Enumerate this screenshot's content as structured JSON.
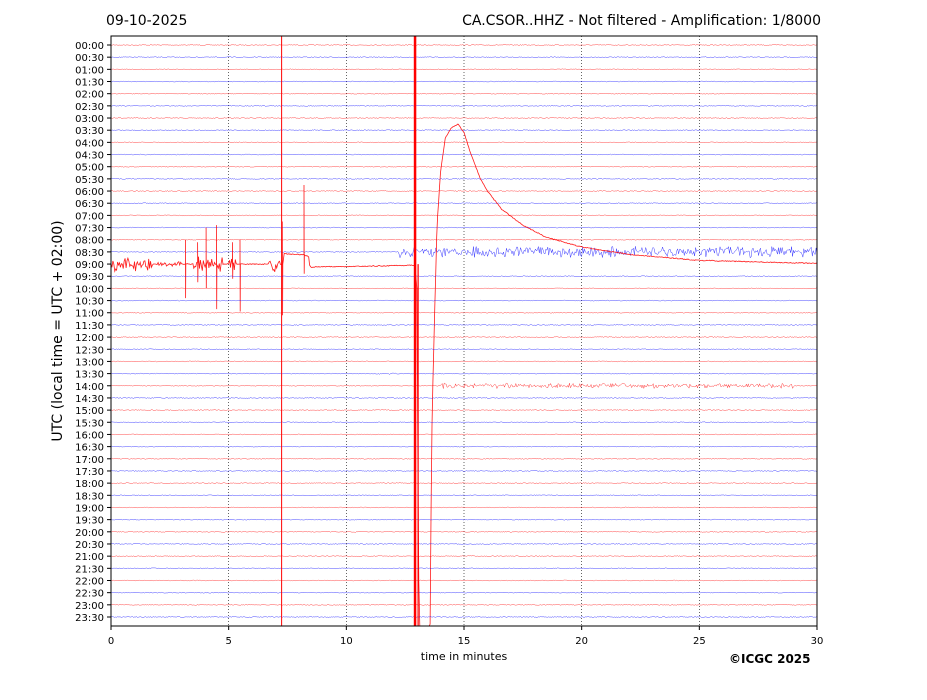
{
  "header": {
    "date": "09-10-2025",
    "title": "CA.CSOR..HHZ - Not filtered - Amplification: 1/8000"
  },
  "footer": {
    "copyright": "©ICGC 2025"
  },
  "chart_data": {
    "type": "line",
    "title": "CA.CSOR..HHZ - Not filtered - Amplification: 1/8000",
    "xlabel": "time in minutes",
    "ylabel": "UTC (local time = UTC + 02:00)",
    "xlim": [
      0,
      30
    ],
    "xticks": [
      "0",
      "5",
      "10",
      "15",
      "20",
      "25",
      "30"
    ],
    "rows": [
      "00:00",
      "00:30",
      "01:00",
      "01:30",
      "02:00",
      "02:30",
      "03:00",
      "03:30",
      "04:00",
      "04:30",
      "05:00",
      "05:30",
      "06:00",
      "06:30",
      "07:00",
      "07:30",
      "08:00",
      "08:30",
      "09:00",
      "09:30",
      "10:00",
      "10:30",
      "11:00",
      "11:30",
      "12:00",
      "12:30",
      "13:00",
      "13:30",
      "14:00",
      "14:30",
      "15:00",
      "15:30",
      "16:00",
      "16:30",
      "17:00",
      "17:30",
      "18:00",
      "18:30",
      "19:00",
      "19:30",
      "20:00",
      "20:30",
      "21:00",
      "21:30",
      "22:00",
      "22:30",
      "23:00",
      "23:30"
    ],
    "trace_colors": [
      "#ff0000",
      "#0000ff"
    ],
    "grid": "vertical dotted at x ticks",
    "bursts": [
      {
        "row": "09:00",
        "start": 0.0,
        "end": 1.8,
        "amp": 0.45
      },
      {
        "row": "09:00",
        "start": 2.0,
        "end": 3.0,
        "amp": 0.15
      },
      {
        "row": "09:00",
        "start": 3.5,
        "end": 4.8,
        "amp": 0.5
      },
      {
        "row": "09:00",
        "start": 5.0,
        "end": 5.3,
        "amp": 0.4
      },
      {
        "row": "09:00",
        "start": 6.7,
        "end": 7.2,
        "amp": 0.5
      },
      {
        "row": "08:30",
        "start": 12.2,
        "end": 30.0,
        "amp": 0.35
      },
      {
        "row": "14:00",
        "start": 14.0,
        "end": 29.0,
        "amp": 0.15
      },
      {
        "row": "13:30",
        "start": 11.3,
        "end": 12.2,
        "amp": 0.05
      }
    ],
    "spikes": [
      {
        "row": "09:00",
        "t": 3.15,
        "up": 2.0,
        "down": 2.8
      },
      {
        "row": "09:00",
        "t": 3.7,
        "up": 1.8,
        "down": 1.5
      },
      {
        "row": "09:00",
        "t": 4.05,
        "up": 3.0,
        "down": 2.0
      },
      {
        "row": "09:00",
        "t": 4.5,
        "up": 3.2,
        "down": 3.7
      },
      {
        "row": "09:00",
        "t": 5.15,
        "up": 1.8,
        "down": 1.2
      },
      {
        "row": "09:00",
        "t": 5.5,
        "up": 2.0,
        "down": 3.9
      },
      {
        "row": "09:00",
        "t": 7.3,
        "up": 3.5,
        "down": 4.2
      },
      {
        "row": "09:00",
        "t": 8.2,
        "up": 6.5,
        "down": 0.8
      }
    ],
    "step_offset": [
      [
        7.3,
        0.0
      ],
      [
        7.35,
        0.85
      ],
      [
        8.2,
        0.78
      ],
      [
        8.4,
        0.6
      ],
      [
        8.45,
        -0.25
      ],
      [
        10,
        -0.2
      ],
      [
        12.9,
        -0.1
      ]
    ],
    "full_height_lines": [
      {
        "t": 7.25,
        "weight": 1
      },
      {
        "t": 12.92,
        "weight": 2.5
      }
    ],
    "long_period_wave": {
      "row": "09:00",
      "points": [
        [
          12.9,
          0
        ],
        [
          13.0,
          -2
        ],
        [
          13.05,
          -20
        ],
        [
          13.1,
          -30
        ],
        [
          13.55,
          -32
        ],
        [
          13.62,
          -15
        ],
        [
          13.7,
          -8
        ],
        [
          13.78,
          -2
        ],
        [
          13.85,
          3
        ],
        [
          14.0,
          7.5
        ],
        [
          14.2,
          10.3
        ],
        [
          14.45,
          11.2
        ],
        [
          14.75,
          11.5
        ],
        [
          15.0,
          10.8
        ],
        [
          15.3,
          9
        ],
        [
          15.7,
          7
        ],
        [
          16.0,
          6
        ],
        [
          16.6,
          4.5
        ],
        [
          17.5,
          3.2
        ],
        [
          18.5,
          2.2
        ],
        [
          20,
          1.4
        ],
        [
          22,
          0.8
        ],
        [
          25,
          0.3
        ],
        [
          30,
          0.05
        ]
      ]
    }
  }
}
